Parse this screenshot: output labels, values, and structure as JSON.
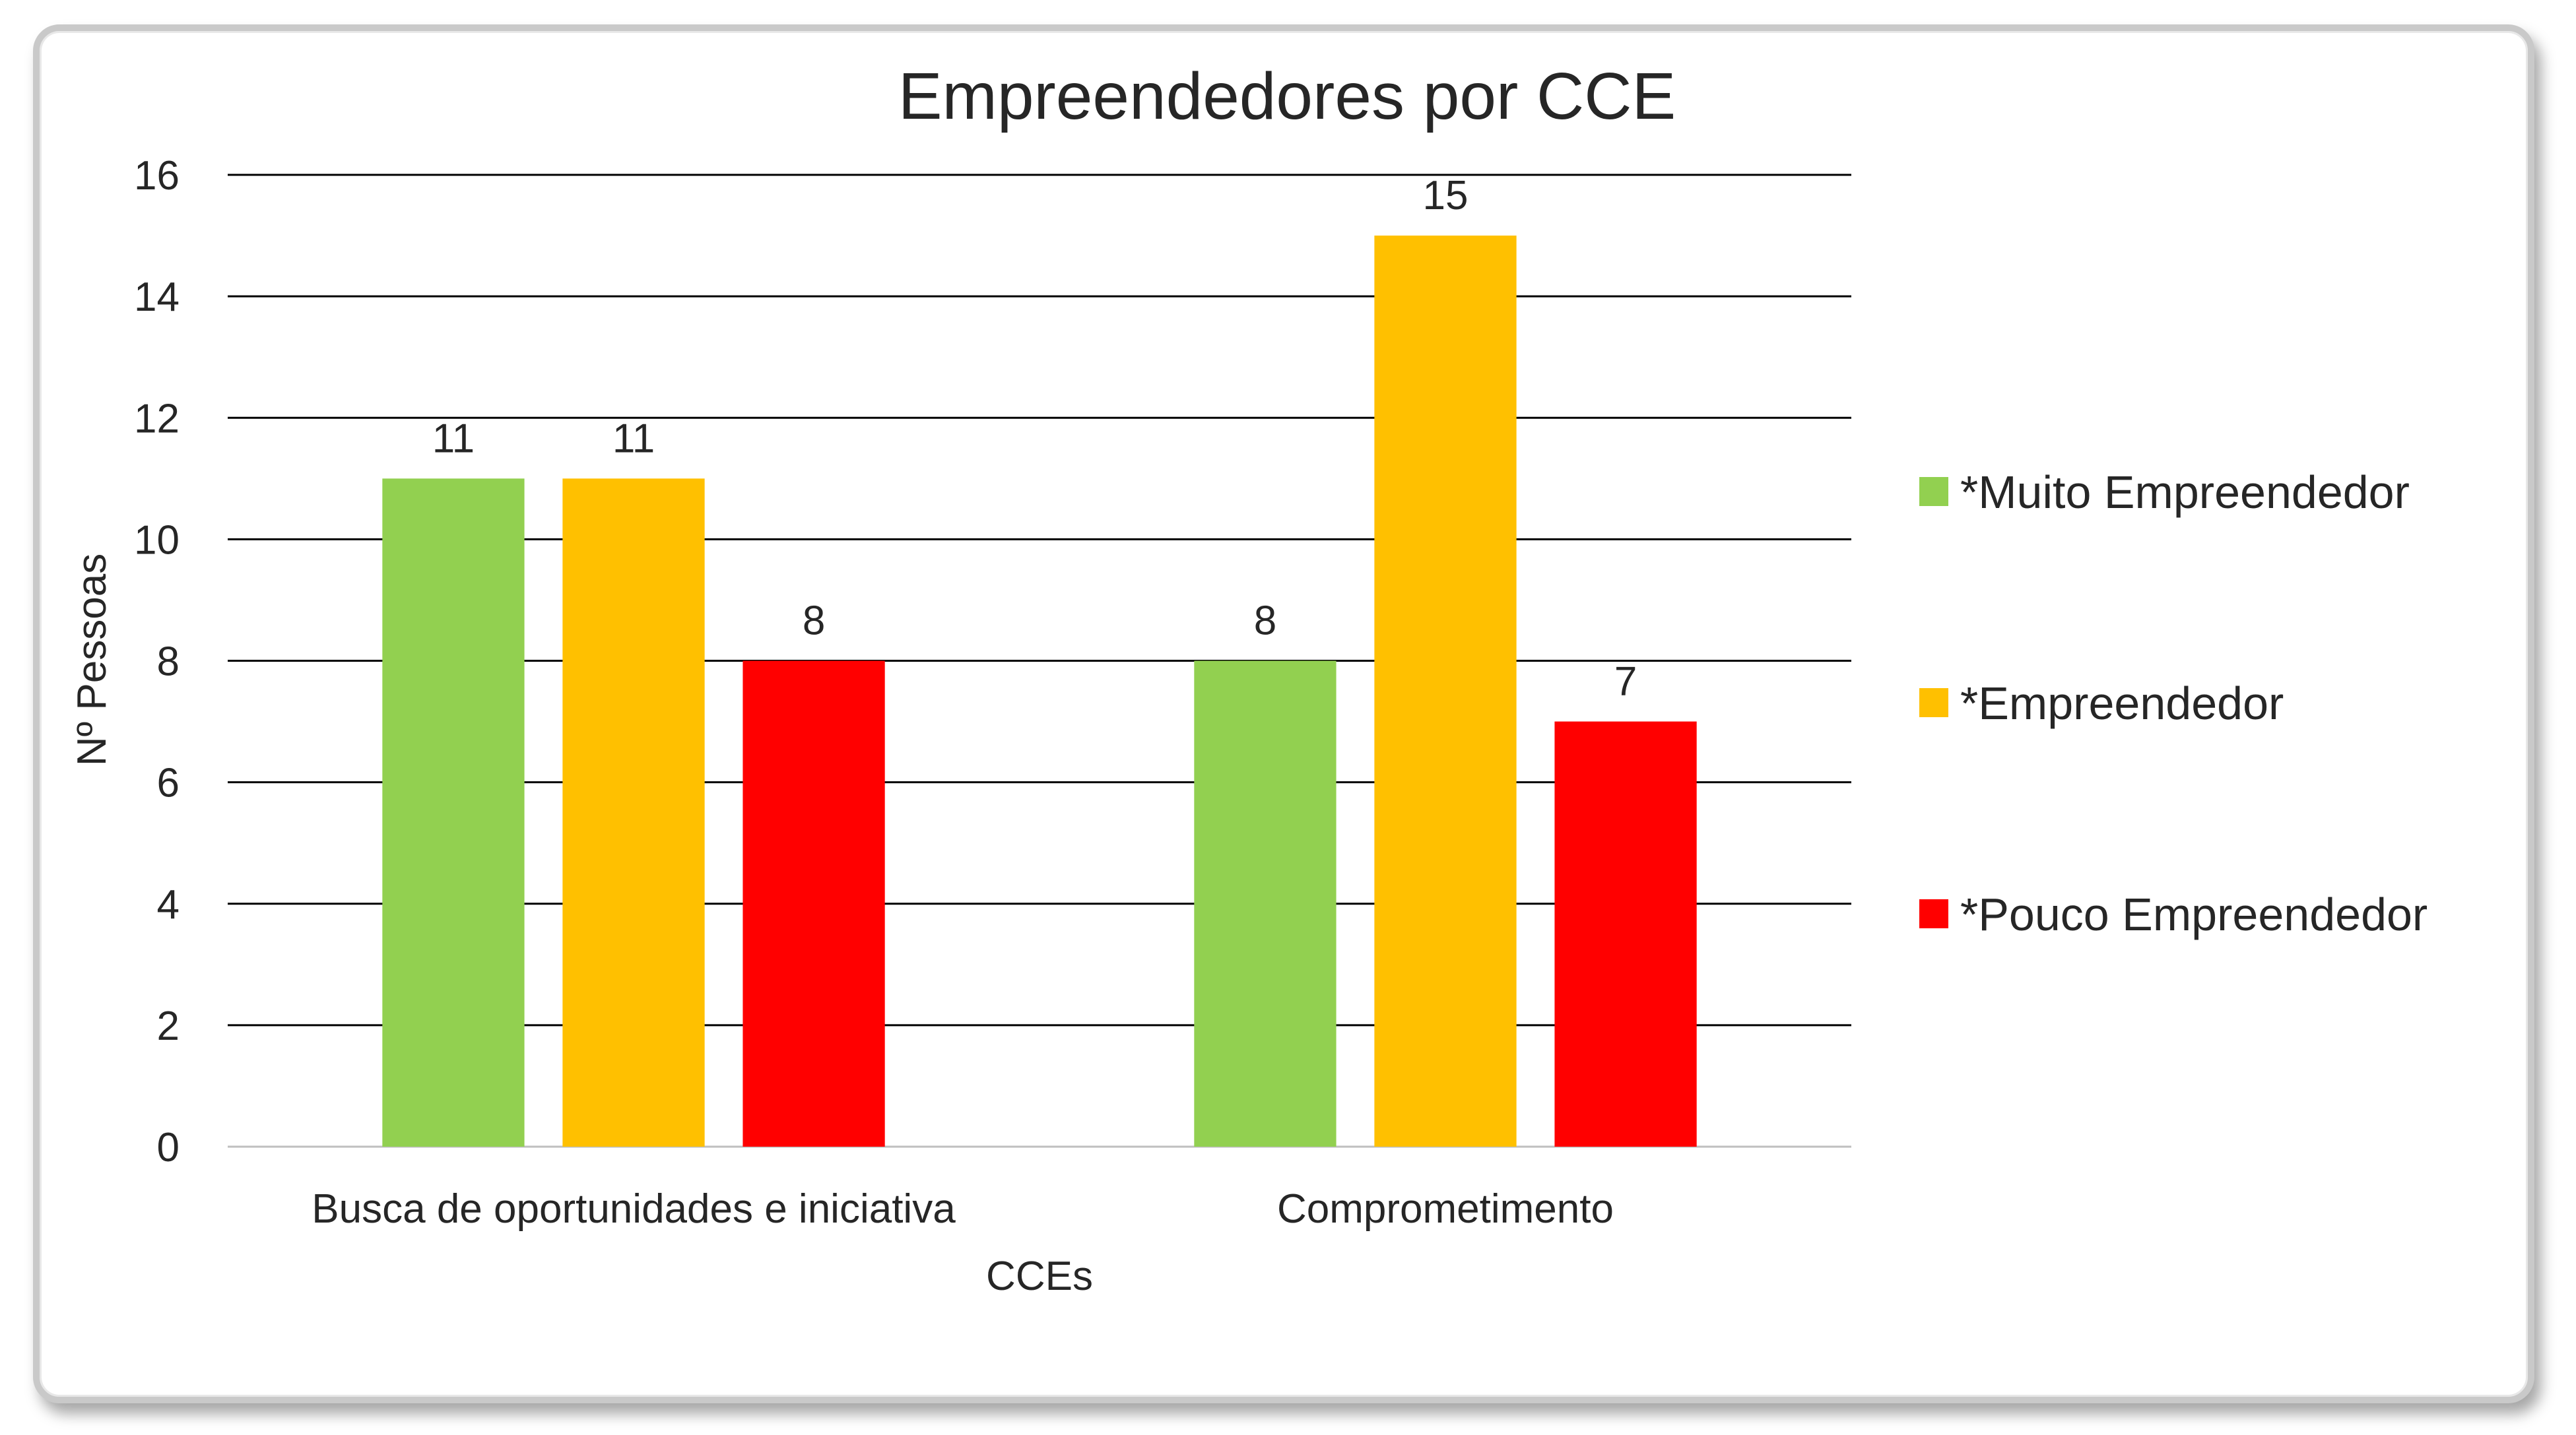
{
  "chart_data": {
    "type": "bar",
    "title": "Empreendedores por CCE",
    "xlabel": "CCEs",
    "ylabel": "Nº Pessoas",
    "categories": [
      "Busca de oportunidades e iniciativa",
      "Comprometimento"
    ],
    "series": [
      {
        "name": "*Muito Empreendedor",
        "values": [
          11,
          8
        ],
        "color": "#92d050"
      },
      {
        "name": "*Empreendedor",
        "values": [
          11,
          15
        ],
        "color": "#ffc000"
      },
      {
        "name": "*Pouco Empreendedor",
        "values": [
          8,
          7
        ],
        "color": "#ff0000"
      }
    ],
    "ylim": [
      0,
      16
    ],
    "yticks": [
      0,
      2,
      4,
      6,
      8,
      10,
      12,
      14,
      16
    ],
    "grid": true,
    "legend_position": "right",
    "data_labels": true
  }
}
